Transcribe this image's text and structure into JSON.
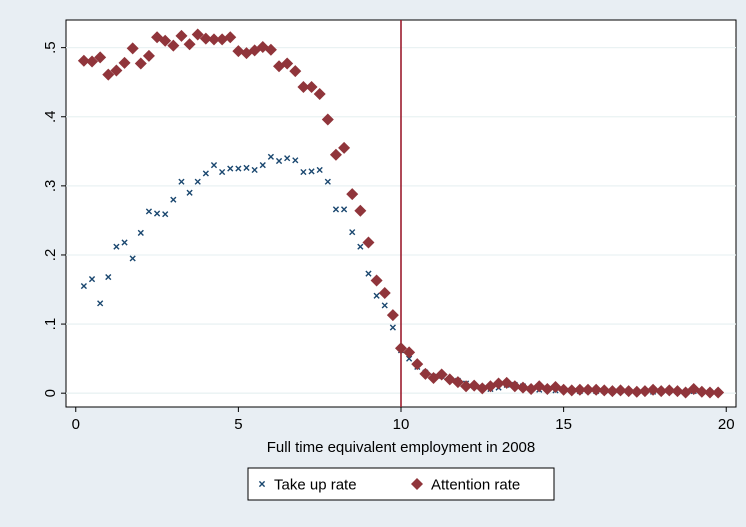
{
  "chart_data": {
    "type": "scatter",
    "title": "",
    "xlabel": "Full time equivalent employment in 2008",
    "ylabel": "",
    "xlim": [
      -0.3,
      20.3
    ],
    "ylim": [
      -0.02,
      0.54
    ],
    "x_ticks": [
      0,
      5,
      10,
      15,
      20
    ],
    "x_tick_labels": [
      "0",
      "5",
      "10",
      "15",
      "20"
    ],
    "y_ticks": [
      0,
      0.1,
      0.2,
      0.3,
      0.4,
      0.5
    ],
    "y_tick_labels": [
      "0",
      ".1",
      ".2",
      ".3",
      ".4",
      ".5"
    ],
    "grid": "horizontal",
    "reference_line": {
      "x": 10,
      "color": "#9c1d2e"
    },
    "legend": {
      "placement": "bottom",
      "entries": [
        "Take up rate",
        "Attention rate"
      ]
    },
    "series": [
      {
        "name": "Take up rate",
        "marker": "x",
        "color": "#1a476f",
        "x": [
          0.25,
          0.5,
          0.75,
          1.0,
          1.25,
          1.5,
          1.75,
          2.0,
          2.25,
          2.5,
          2.75,
          3.0,
          3.25,
          3.5,
          3.75,
          4.0,
          4.25,
          4.5,
          4.75,
          5.0,
          5.25,
          5.5,
          5.75,
          6.0,
          6.25,
          6.5,
          6.75,
          7.0,
          7.25,
          7.5,
          7.75,
          8.0,
          8.25,
          8.5,
          8.75,
          9.0,
          9.25,
          9.5,
          9.75,
          10.0,
          10.25,
          10.5,
          10.75,
          11.0,
          11.25,
          11.5,
          11.75,
          12.0,
          12.25,
          12.5,
          12.75,
          13.0,
          13.25,
          13.5,
          13.75,
          14.0,
          14.25,
          14.5,
          14.75,
          15.0,
          15.25,
          15.5,
          15.75,
          16.0,
          16.25,
          16.5,
          16.75,
          17.0,
          17.25,
          17.5,
          17.75,
          18.0,
          18.25,
          18.5,
          18.75,
          19.0,
          19.25,
          19.5,
          19.75
        ],
        "y": [
          0.155,
          0.165,
          0.13,
          0.168,
          0.212,
          0.218,
          0.195,
          0.232,
          0.263,
          0.26,
          0.259,
          0.28,
          0.306,
          0.29,
          0.306,
          0.318,
          0.33,
          0.32,
          0.325,
          0.325,
          0.326,
          0.323,
          0.33,
          0.342,
          0.336,
          0.34,
          0.337,
          0.32,
          0.321,
          0.323,
          0.306,
          0.266,
          0.266,
          0.233,
          0.212,
          0.173,
          0.141,
          0.127,
          0.095,
          0.062,
          0.05,
          0.038,
          0.03,
          0.024,
          0.025,
          0.02,
          0.018,
          0.014,
          0.01,
          0.008,
          0.006,
          0.008,
          0.012,
          0.012,
          0.01,
          0.006,
          0.005,
          0.006,
          0.004,
          0.005,
          0.004,
          0.003,
          0.004,
          0.003,
          0.003,
          0.002,
          0.003,
          0.002,
          0.002,
          0.003,
          0.002,
          0.002,
          0.003,
          0.002,
          0.002,
          0.003,
          0.002,
          0.002,
          0.002
        ]
      },
      {
        "name": "Attention rate",
        "marker": "diamond",
        "color": "#90353b",
        "x": [
          0.25,
          0.5,
          0.75,
          1.0,
          1.25,
          1.5,
          1.75,
          2.0,
          2.25,
          2.5,
          2.75,
          3.0,
          3.25,
          3.5,
          3.75,
          4.0,
          4.25,
          4.5,
          4.75,
          5.0,
          5.25,
          5.5,
          5.75,
          6.0,
          6.25,
          6.5,
          6.75,
          7.0,
          7.25,
          7.5,
          7.75,
          8.0,
          8.25,
          8.5,
          8.75,
          9.0,
          9.25,
          9.5,
          9.75,
          10.0,
          10.25,
          10.5,
          10.75,
          11.0,
          11.25,
          11.5,
          11.75,
          12.0,
          12.25,
          12.5,
          12.75,
          13.0,
          13.25,
          13.5,
          13.75,
          14.0,
          14.25,
          14.5,
          14.75,
          15.0,
          15.25,
          15.5,
          15.75,
          16.0,
          16.25,
          16.5,
          16.75,
          17.0,
          17.25,
          17.5,
          17.75,
          18.0,
          18.25,
          18.5,
          18.75,
          19.0,
          19.25,
          19.5,
          19.75
        ],
        "y": [
          0.481,
          0.48,
          0.486,
          0.461,
          0.467,
          0.478,
          0.499,
          0.477,
          0.488,
          0.515,
          0.51,
          0.503,
          0.517,
          0.505,
          0.519,
          0.513,
          0.512,
          0.512,
          0.515,
          0.495,
          0.492,
          0.496,
          0.501,
          0.497,
          0.473,
          0.477,
          0.466,
          0.443,
          0.443,
          0.433,
          0.396,
          0.345,
          0.355,
          0.288,
          0.264,
          0.218,
          0.163,
          0.145,
          0.113,
          0.065,
          0.059,
          0.042,
          0.028,
          0.022,
          0.027,
          0.02,
          0.016,
          0.01,
          0.011,
          0.007,
          0.01,
          0.014,
          0.015,
          0.01,
          0.008,
          0.006,
          0.01,
          0.006,
          0.009,
          0.005,
          0.004,
          0.005,
          0.005,
          0.005,
          0.004,
          0.003,
          0.004,
          0.003,
          0.002,
          0.003,
          0.005,
          0.003,
          0.004,
          0.003,
          0.001,
          0.006,
          0.002,
          0.001,
          0.001
        ]
      }
    ]
  }
}
